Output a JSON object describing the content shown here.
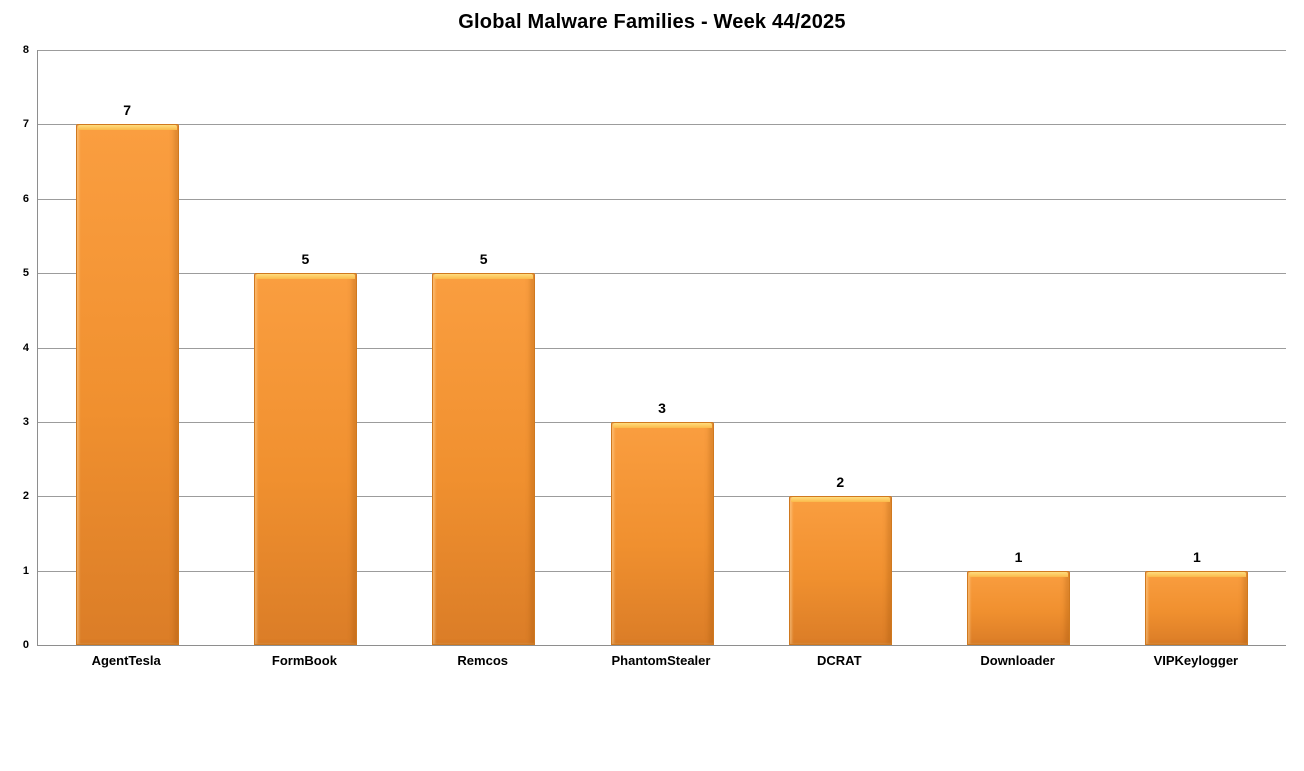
{
  "colors": {
    "background": "#FFFFFF",
    "text": "#000000",
    "axis_line": "#8E8E8E",
    "gridline": "#9C9C9C",
    "bar_body_top": "#FA9E40",
    "bar_body_bottom": "#DB7D27",
    "bar_border": "#D0791F",
    "bar_highlight_top": "#FFDC7E",
    "bar_highlight_bottom": "#FBB94A"
  },
  "chart_data": {
    "type": "bar",
    "title": "Global Malware Families - Week 44/2025",
    "categories": [
      "AgentTesla",
      "FormBook",
      "Remcos",
      "PhantomStealer",
      "DCRAT",
      "Downloader",
      "VIPKeylogger"
    ],
    "values": [
      7,
      5,
      5,
      3,
      2,
      1,
      1
    ],
    "data_labels": [
      "7",
      "5",
      "5",
      "3",
      "2",
      "1",
      "1"
    ],
    "xlabel": "",
    "ylabel": "",
    "ylim": [
      0,
      8
    ],
    "yticks": [
      0,
      1,
      2,
      3,
      4,
      5,
      6,
      7,
      8
    ],
    "grid": "horizontal",
    "legend": "none",
    "bar_style": "orange vertical gradient with top bevel highlight"
  }
}
